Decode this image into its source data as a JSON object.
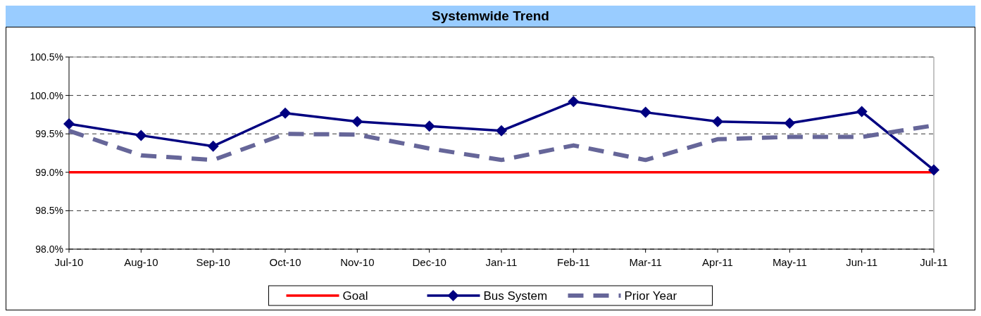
{
  "chart_data": {
    "type": "line",
    "title": "Systemwide Trend",
    "categories": [
      "Jul-10",
      "Aug-10",
      "Sep-10",
      "Oct-10",
      "Nov-10",
      "Dec-10",
      "Jan-11",
      "Feb-11",
      "Mar-11",
      "Apr-11",
      "May-11",
      "Jun-11",
      "Jul-11"
    ],
    "ylim": [
      98,
      100.5
    ],
    "yticks": [
      {
        "value": 98,
        "label": "98.0%"
      },
      {
        "value": 98.5,
        "label": "98.5%"
      },
      {
        "value": 99,
        "label": "99.0%"
      },
      {
        "value": 99.5,
        "label": "99.5%"
      },
      {
        "value": 100,
        "label": "100.0%"
      },
      {
        "value": 100.5,
        "label": "100.5%"
      }
    ],
    "grid": "y",
    "legend": "bottom",
    "series": [
      {
        "name": "Goal",
        "color": "#ff0000",
        "marker": "none",
        "line_style": "solid",
        "values": [
          99,
          99,
          99,
          99,
          99,
          99,
          99,
          99,
          99,
          99,
          99,
          99,
          99
        ]
      },
      {
        "name": "Bus System",
        "color": "#000080",
        "marker": "diamond",
        "line_style": "solid",
        "values": [
          99.63,
          99.48,
          99.34,
          99.77,
          99.66,
          99.6,
          99.54,
          99.92,
          99.78,
          99.66,
          99.64,
          99.79,
          99.03
        ]
      },
      {
        "name": "Prior Year",
        "color": "#666699",
        "marker": "none",
        "line_style": "dashed",
        "values": [
          99.54,
          99.22,
          99.16,
          99.5,
          99.49,
          99.31,
          99.16,
          99.35,
          99.16,
          99.43,
          99.46,
          99.46,
          99.61
        ]
      }
    ]
  }
}
